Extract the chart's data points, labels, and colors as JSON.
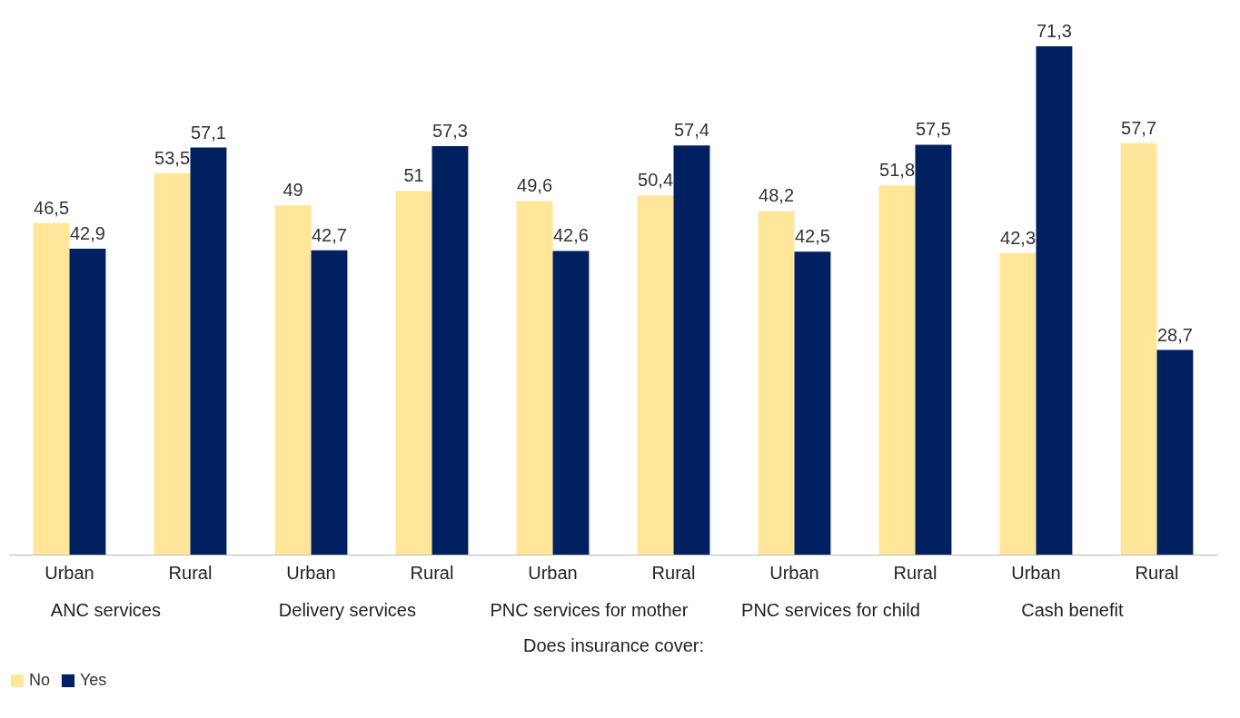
{
  "chart_data": {
    "type": "bar",
    "xlabel": "Does insurance cover:",
    "categories": [
      "Urban",
      "Rural",
      "Urban",
      "Rural",
      "Urban",
      "Rural",
      "Urban",
      "Rural",
      "Urban",
      "Rural"
    ],
    "annotations": [
      "ANC services",
      "Delivery services",
      "PNC services for mother",
      "PNC services for child",
      "Cash benefit"
    ],
    "series": [
      {
        "name": "No",
        "color": "#ffe699",
        "values": [
          46.5,
          53.5,
          49,
          51,
          49.6,
          50.4,
          48.2,
          51.8,
          42.3,
          57.7
        ],
        "value_labels": [
          "46,5",
          "53,5",
          "49",
          "51",
          "49,6",
          "50,4",
          "48,2",
          "51,8",
          "42,3",
          "57,7"
        ]
      },
      {
        "name": "Yes",
        "color": "#002060",
        "values": [
          42.9,
          57.1,
          42.7,
          57.3,
          42.6,
          57.4,
          42.5,
          57.5,
          71.3,
          28.7
        ],
        "value_labels": [
          "42,9",
          "57,1",
          "42,7",
          "57,3",
          "42,6",
          "57,4",
          "42,5",
          "57,5",
          "71,3",
          "28,7"
        ]
      }
    ],
    "legend": "bottom",
    "grid": false
  }
}
